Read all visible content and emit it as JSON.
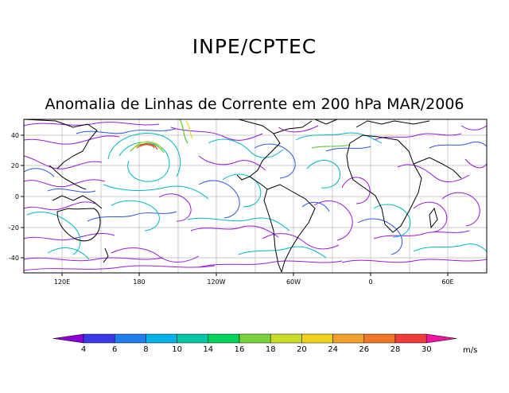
{
  "header": {
    "title": "INPE/CPTEC",
    "subtitle": "Anomalia de Linhas de Corrente em 200 hPa MAR/2006"
  },
  "map": {
    "lat_labels": [
      "40",
      "20",
      "0",
      "-20",
      "-40"
    ],
    "lon_labels": [
      "120E",
      "180",
      "120W",
      "60W",
      "0",
      "60E"
    ]
  },
  "colorbar": {
    "labels": [
      "4",
      "6",
      "8",
      "10",
      "14",
      "16",
      "18",
      "20",
      "24",
      "26",
      "28",
      "30"
    ],
    "unit": "m/s",
    "colors": [
      "#8b00d4",
      "#3b38e8",
      "#1f7ff0",
      "#00b2e8",
      "#00c8a6",
      "#00d25a",
      "#7cd23a",
      "#c8dc28",
      "#f0d21e",
      "#f0a028",
      "#f07828",
      "#f03c3c",
      "#f014a0"
    ]
  }
}
